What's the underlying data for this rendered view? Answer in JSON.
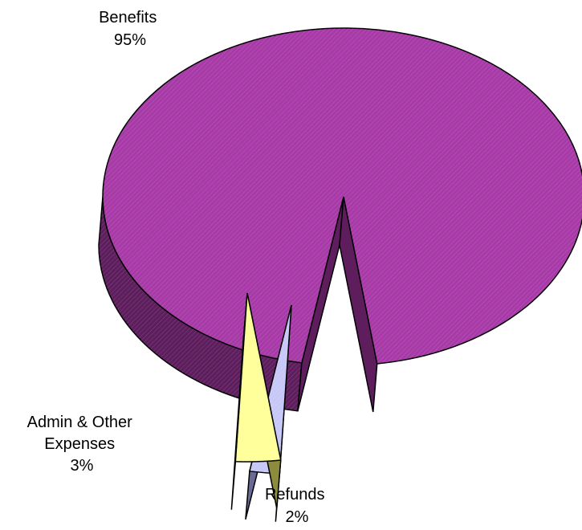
{
  "chart_data": {
    "type": "pie",
    "three_d": true,
    "exploded": [
      "Admin & Other Expenses",
      "Refunds"
    ],
    "legend": "none",
    "slices": [
      {
        "name": "Benefits",
        "label_lines": [
          "Benefits",
          "95%"
        ],
        "value": 95,
        "color": "#a83aa8",
        "side_color": "#5e1e5e"
      },
      {
        "name": "Admin & Other Expenses",
        "label_lines": [
          "Admin & Other",
          "Expenses",
          "3%"
        ],
        "value": 3,
        "color": "#ffff99",
        "side_color": "#8c8c3c"
      },
      {
        "name": "Refunds",
        "label_lines": [
          "Refunds",
          "2%"
        ],
        "value": 2,
        "color": "#c8c8f8",
        "side_color": "#6a6a94"
      }
    ]
  }
}
